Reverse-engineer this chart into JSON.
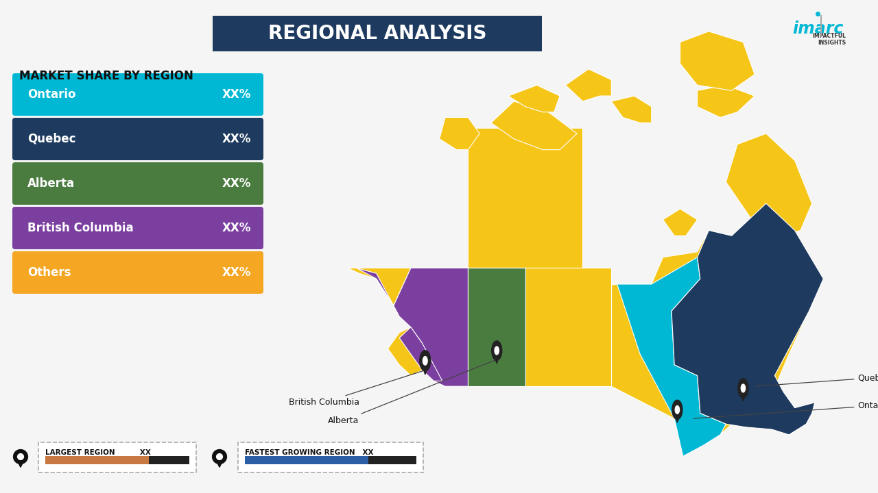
{
  "title": "REGIONAL ANALYSIS",
  "title_bg_color": "#1e3a5f",
  "title_text_color": "#ffffff",
  "bg_color": "#f5f5f5",
  "section_title": "MARKET SHARE BY REGION",
  "bars": [
    {
      "label": "Ontario",
      "value": "XX%",
      "color": "#00b8d4"
    },
    {
      "label": "Quebec",
      "value": "XX%",
      "color": "#1e3a5f"
    },
    {
      "label": "Alberta",
      "value": "XX%",
      "color": "#4a7c3f"
    },
    {
      "label": "British Columbia",
      "value": "XX%",
      "color": "#7b3fa0"
    },
    {
      "label": "Others",
      "value": "XX%",
      "color": "#f5a623"
    }
  ],
  "map_colors": {
    "default": "#f5c518",
    "ontario": "#00b8d4",
    "quebec": "#1e3a5f",
    "alberta": "#4a7c3f",
    "british_columbia": "#7b3fa0"
  },
  "legend_largest_color": "#c87941",
  "legend_fastest_color": "#2a5fa5",
  "legend_bar_bg": "#222222",
  "imarc_color": "#00b8d4"
}
